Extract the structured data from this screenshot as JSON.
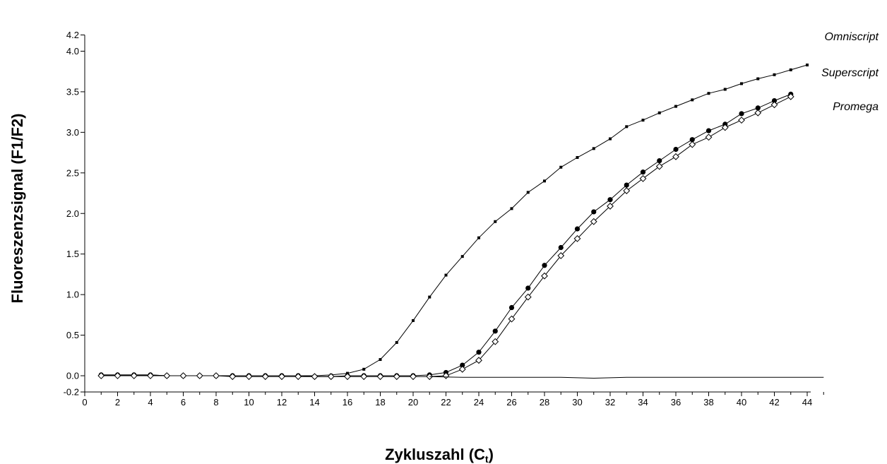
{
  "chart_data": {
    "type": "line",
    "xlabel": "Zykluszahl (C",
    "xlabel_sub": "t",
    "xlabel_close": ")",
    "ylabel": "Fluoreszenzsignal (F1/F2)",
    "xlim": [
      0,
      45
    ],
    "ylim": [
      -0.2,
      4.2
    ],
    "x_ticks": [
      0,
      2,
      4,
      6,
      8,
      10,
      12,
      14,
      16,
      18,
      20,
      22,
      24,
      26,
      28,
      30,
      32,
      34,
      36,
      38,
      40,
      42,
      44
    ],
    "y_ticks": [
      -0.2,
      0.0,
      0.5,
      1.0,
      1.5,
      2.0,
      2.5,
      3.0,
      3.5,
      4.0,
      4.2
    ],
    "y_tick_labels": [
      "-0.2",
      "0.0",
      "0.5",
      "1.0",
      "1.5",
      "2.0",
      "2.5",
      "3.0",
      "3.5",
      "4.0",
      "4.2"
    ],
    "grid": false,
    "series": [
      {
        "name": "Omniscript",
        "marker": "small-square",
        "x": [
          1,
          2,
          3,
          4,
          5,
          6,
          7,
          8,
          9,
          10,
          11,
          12,
          13,
          14,
          15,
          16,
          17,
          18,
          19,
          20,
          21,
          22,
          23,
          24,
          25,
          26,
          27,
          28,
          29,
          30,
          31,
          32,
          33,
          34,
          35,
          36,
          37,
          38,
          39,
          40,
          41,
          42,
          43,
          44
        ],
        "y": [
          0.01,
          0.01,
          0.01,
          0.01,
          0.0,
          0.0,
          0.0,
          0.0,
          0.0,
          0.0,
          0.0,
          0.0,
          0.0,
          0.0,
          0.01,
          0.03,
          0.08,
          0.2,
          0.41,
          0.68,
          0.97,
          1.24,
          1.47,
          1.7,
          1.9,
          2.06,
          2.26,
          2.4,
          2.57,
          2.69,
          2.8,
          2.92,
          3.07,
          3.15,
          3.24,
          3.32,
          3.4,
          3.48,
          3.53,
          3.6,
          3.66,
          3.71,
          3.77,
          3.83
        ]
      },
      {
        "name": "Superscript",
        "marker": "filled-circle",
        "x": [
          1,
          2,
          3,
          4,
          5,
          6,
          7,
          8,
          9,
          10,
          11,
          12,
          13,
          14,
          15,
          16,
          17,
          18,
          19,
          20,
          21,
          22,
          23,
          24,
          25,
          26,
          27,
          28,
          29,
          30,
          31,
          32,
          33,
          34,
          35,
          36,
          37,
          38,
          39,
          40,
          41,
          42,
          43
        ],
        "y": [
          0.01,
          0.01,
          0.01,
          0.01,
          0.0,
          0.0,
          0.0,
          0.0,
          0.0,
          0.0,
          0.0,
          0.0,
          0.0,
          -0.01,
          -0.01,
          0.0,
          0.0,
          0.0,
          0.0,
          0.0,
          0.01,
          0.04,
          0.13,
          0.29,
          0.55,
          0.84,
          1.08,
          1.36,
          1.58,
          1.81,
          2.02,
          2.17,
          2.35,
          2.51,
          2.65,
          2.79,
          2.91,
          3.02,
          3.1,
          3.23,
          3.3,
          3.39,
          3.47
        ]
      },
      {
        "name": "Promega",
        "marker": "open-diamond",
        "x": [
          1,
          2,
          3,
          4,
          5,
          6,
          7,
          8,
          9,
          10,
          11,
          12,
          13,
          14,
          15,
          16,
          17,
          18,
          19,
          20,
          21,
          22,
          23,
          24,
          25,
          26,
          27,
          28,
          29,
          30,
          31,
          32,
          33,
          34,
          35,
          36,
          37,
          38,
          39,
          40,
          41,
          42,
          43
        ],
        "y": [
          0.0,
          0.0,
          0.0,
          0.0,
          0.0,
          0.0,
          0.0,
          0.0,
          -0.01,
          -0.01,
          -0.01,
          -0.01,
          -0.01,
          -0.01,
          -0.01,
          -0.01,
          -0.01,
          -0.01,
          -0.01,
          -0.01,
          -0.01,
          0.0,
          0.08,
          0.19,
          0.42,
          0.7,
          0.97,
          1.23,
          1.48,
          1.69,
          1.9,
          2.09,
          2.28,
          2.43,
          2.58,
          2.7,
          2.85,
          2.94,
          3.06,
          3.15,
          3.24,
          3.34,
          3.44
        ]
      },
      {
        "name": "",
        "marker": "none",
        "x": [
          21,
          23,
          25,
          27,
          29,
          31,
          33,
          35,
          37,
          39,
          41,
          43,
          45
        ],
        "y": [
          -0.01,
          -0.02,
          -0.02,
          -0.02,
          -0.02,
          -0.03,
          -0.02,
          -0.02,
          -0.02,
          -0.02,
          -0.02,
          -0.02,
          -0.02
        ]
      }
    ],
    "end_labels": [
      {
        "text": "Omniscript",
        "series": 0
      },
      {
        "text": "Superscript",
        "series": 1
      },
      {
        "text": "Promega",
        "series": 2
      }
    ]
  }
}
